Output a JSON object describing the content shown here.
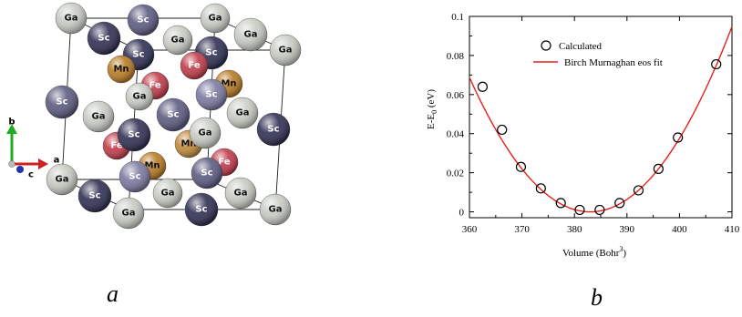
{
  "panel_a": {
    "caption": "a",
    "axes": {
      "b": "b",
      "a": "a",
      "c": "c"
    },
    "atoms": [
      {
        "el": "Ga",
        "color": "#c8ccc4"
      },
      {
        "el": "Sc",
        "color": "#5a5a80"
      },
      {
        "el": "Ga",
        "color": "#c8ccc4"
      },
      {
        "el": "Sc",
        "color": "#2e2e52"
      },
      {
        "el": "Ga",
        "color": "#c8ccc4"
      },
      {
        "el": "Ga",
        "color": "#c8ccc4"
      },
      {
        "el": "Sc",
        "color": "#2e2e52"
      },
      {
        "el": "Sc",
        "color": "#2e2e52"
      },
      {
        "el": "Ga",
        "color": "#c8ccc4"
      },
      {
        "el": "Mn",
        "color": "#b87a22"
      },
      {
        "el": "Fe",
        "color": "#c03a48"
      },
      {
        "el": "Fe",
        "color": "#c03a48"
      },
      {
        "el": "Mn",
        "color": "#b87a22"
      },
      {
        "el": "Ga",
        "color": "#c8ccc4"
      },
      {
        "el": "Sc",
        "color": "#7a78a0"
      },
      {
        "el": "Sc",
        "color": "#5a5a80"
      },
      {
        "el": "Ga",
        "color": "#c8ccc4"
      },
      {
        "el": "Sc",
        "color": "#5a5a80"
      },
      {
        "el": "Ga",
        "color": "#c8ccc4"
      },
      {
        "el": "Sc",
        "color": "#2e2e52"
      },
      {
        "el": "Fe",
        "color": "#c03a48"
      },
      {
        "el": "Mn",
        "color": "#c08a3a"
      },
      {
        "el": "Ga",
        "color": "#c8ccc4"
      },
      {
        "el": "Sc",
        "color": "#2e2e52"
      },
      {
        "el": "Mn",
        "color": "#b87a22"
      },
      {
        "el": "Sc",
        "color": "#7a78a0"
      },
      {
        "el": "Fe",
        "color": "#c03a48"
      },
      {
        "el": "Ga",
        "color": "#c8ccc4"
      },
      {
        "el": "Ga",
        "color": "#c8ccc4"
      },
      {
        "el": "Sc",
        "color": "#5a5a80"
      },
      {
        "el": "Ga",
        "color": "#c8ccc4"
      },
      {
        "el": "Sc",
        "color": "#2e2e52"
      },
      {
        "el": "Ga",
        "color": "#c8ccc4"
      },
      {
        "el": "Sc",
        "color": "#2e2e52"
      },
      {
        "el": "Sc",
        "color": "#5a5a80"
      },
      {
        "el": "Ga",
        "color": "#c8ccc4"
      },
      {
        "el": "Ga",
        "color": "#c8ccc4"
      },
      {
        "el": "Ga",
        "color": "#c8ccc4"
      }
    ]
  },
  "panel_b": {
    "caption": "b"
  },
  "chart_data": {
    "type": "scatter",
    "xlabel": "Volume (Bohr",
    "xlabel_sup": "3",
    "xlabel_end": ")",
    "ylabel_main": "E-E",
    "ylabel_sub": "0",
    "ylabel_unit": " (eV)",
    "xlim": [
      360,
      410
    ],
    "ylim": [
      -0.003,
      0.1
    ],
    "xticks": [
      360,
      370,
      380,
      390,
      400,
      410
    ],
    "yticks": [
      0,
      0.02,
      0.04,
      0.06,
      0.08,
      0.1
    ],
    "ytick_labels": [
      "0",
      "0.02",
      "0.04",
      "0.06",
      "0.08",
      "0.1"
    ],
    "series": [
      {
        "name": "Calculated",
        "marker": "circle-open",
        "color": "#000000",
        "x": [
          362.5,
          366.2,
          369.8,
          373.6,
          377.4,
          381.0,
          384.8,
          388.6,
          392.2,
          396.0,
          399.7,
          407.0
        ],
        "y": [
          0.064,
          0.042,
          0.023,
          0.012,
          0.0045,
          0.001,
          0.001,
          0.0045,
          0.011,
          0.022,
          0.038,
          0.0755
        ]
      },
      {
        "name": "Birch Murnaghan eos fit",
        "line": true,
        "color": "#e8201c",
        "fit": {
          "E0": 0.0,
          "V0": 383.0,
          "k": 0.00013,
          "c": 8e-07
        }
      }
    ],
    "legend_position": "top-right",
    "grid": false
  }
}
